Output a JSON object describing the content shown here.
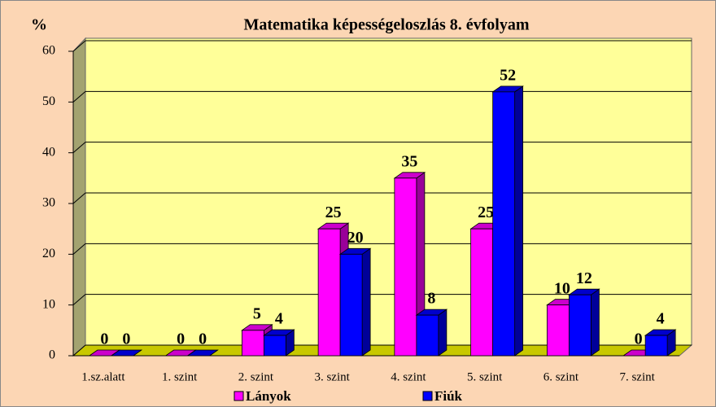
{
  "chart_data": {
    "type": "bar3d",
    "title": "Matematika képességeloszlás 8. évfolyam",
    "y_label": "%",
    "categories": [
      "1.sz.alatt",
      "1. szint",
      "2. szint",
      "3. szint",
      "4. szint",
      "5. szint",
      "6. szint",
      "7. szint"
    ],
    "series": [
      {
        "name": "Lányok",
        "color": "#ff00ff",
        "values": [
          0,
          0,
          5,
          25,
          35,
          25,
          10,
          0
        ]
      },
      {
        "name": "Fiúk",
        "color": "#0000ff",
        "values": [
          0,
          0,
          4,
          20,
          8,
          52,
          12,
          4
        ]
      }
    ],
    "ylim": [
      0,
      60
    ],
    "yticks": [
      0,
      10,
      20,
      30,
      40,
      50,
      60
    ],
    "grid": true,
    "legend": "bottom"
  }
}
